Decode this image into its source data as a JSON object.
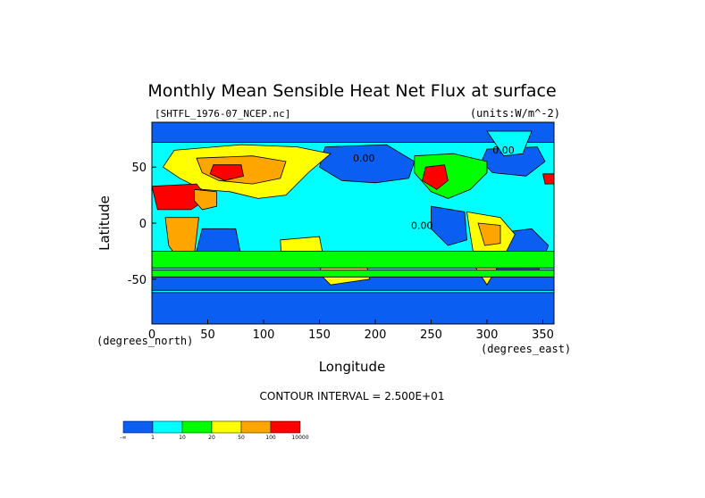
{
  "chart_data": {
    "type": "heatmap",
    "title": "Monthly Mean Sensible Heat Net Flux at surface",
    "source_file": "[SHTFL_1976-07_NCEP.nc]",
    "units": "(units:W/m^-2)",
    "xlabel": "Longitude",
    "ylabel": "Latitude",
    "x_unit_note": "(degrees_east)",
    "y_unit_note": "(degrees_north)",
    "xlim": [
      0,
      360
    ],
    "ylim": [
      -90,
      90
    ],
    "x_ticks": [
      "0",
      "50",
      "100",
      "150",
      "200",
      "250",
      "300",
      "350"
    ],
    "y_ticks": [
      "50",
      "0",
      "-50"
    ],
    "contour_interval": "CONTOUR INTERVAL = 2.500E+01",
    "contour_labels": [
      "0.00",
      "0.00",
      "0.00"
    ],
    "colorbar": {
      "labels": [
        "-∞",
        "1",
        "10",
        "20",
        "50",
        "100",
        "10000"
      ],
      "colors": [
        "#0a5ff2",
        "#00ffff",
        "#00ff00",
        "#ffff00",
        "#ffa500",
        "#ff0000"
      ]
    },
    "regions": [
      {
        "name": "arctic-ocean",
        "level": 0,
        "points": [
          [
            0,
            90
          ],
          [
            360,
            90
          ],
          [
            360,
            72
          ],
          [
            0,
            72
          ]
        ]
      },
      {
        "name": "southern-ocean-band",
        "level": 0,
        "points": [
          [
            0,
            -60
          ],
          [
            360,
            -60
          ],
          [
            360,
            -45
          ],
          [
            0,
            -45
          ]
        ]
      },
      {
        "name": "antarctica-coast",
        "level": 0,
        "points": [
          [
            0,
            -90
          ],
          [
            360,
            -90
          ],
          [
            360,
            -62
          ],
          [
            0,
            -62
          ]
        ]
      },
      {
        "name": "north-pacific-cool",
        "level": 0,
        "points": [
          [
            155,
            68
          ],
          [
            210,
            70
          ],
          [
            235,
            55
          ],
          [
            230,
            40
          ],
          [
            200,
            36
          ],
          [
            170,
            38
          ],
          [
            150,
            50
          ]
        ]
      },
      {
        "name": "north-atlantic-cool",
        "level": 0,
        "points": [
          [
            300,
            66
          ],
          [
            345,
            68
          ],
          [
            352,
            55
          ],
          [
            335,
            42
          ],
          [
            305,
            45
          ],
          [
            295,
            55
          ]
        ]
      },
      {
        "name": "east-pacific-cool",
        "level": 0,
        "points": [
          [
            250,
            15
          ],
          [
            280,
            10
          ],
          [
            282,
            -15
          ],
          [
            265,
            -20
          ],
          [
            250,
            -5
          ]
        ]
      },
      {
        "name": "south-atlantic-cool",
        "level": 0,
        "points": [
          [
            300,
            -10
          ],
          [
            340,
            -5
          ],
          [
            355,
            -20
          ],
          [
            345,
            -45
          ],
          [
            305,
            -45
          ]
        ]
      },
      {
        "name": "indian-ocean-west",
        "level": 0,
        "points": [
          [
            45,
            -5
          ],
          [
            75,
            -5
          ],
          [
            80,
            -30
          ],
          [
            55,
            -40
          ],
          [
            40,
            -25
          ]
        ]
      },
      {
        "name": "north-america",
        "level": 2,
        "points": [
          [
            235,
            60
          ],
          [
            270,
            62
          ],
          [
            300,
            55
          ],
          [
            300,
            45
          ],
          [
            285,
            30
          ],
          [
            265,
            22
          ],
          [
            250,
            28
          ],
          [
            235,
            45
          ]
        ]
      },
      {
        "name": "north-america-hot",
        "level": 5,
        "points": [
          [
            245,
            50
          ],
          [
            262,
            52
          ],
          [
            265,
            38
          ],
          [
            255,
            30
          ],
          [
            242,
            38
          ]
        ]
      },
      {
        "name": "eurasia-warm",
        "level": 3,
        "points": [
          [
            20,
            65
          ],
          [
            80,
            70
          ],
          [
            130,
            68
          ],
          [
            160,
            62
          ],
          [
            140,
            45
          ],
          [
            120,
            25
          ],
          [
            95,
            22
          ],
          [
            70,
            28
          ],
          [
            45,
            30
          ],
          [
            25,
            40
          ],
          [
            10,
            50
          ]
        ]
      },
      {
        "name": "eurasia-hot",
        "level": 4,
        "points": [
          [
            40,
            58
          ],
          [
            90,
            60
          ],
          [
            120,
            55
          ],
          [
            115,
            40
          ],
          [
            90,
            35
          ],
          [
            60,
            38
          ],
          [
            45,
            45
          ]
        ]
      },
      {
        "name": "central-asia-red",
        "level": 5,
        "points": [
          [
            55,
            52
          ],
          [
            80,
            52
          ],
          [
            82,
            42
          ],
          [
            65,
            38
          ],
          [
            52,
            44
          ]
        ]
      },
      {
        "name": "sahara-red",
        "level": 5,
        "points": [
          [
            0,
            33
          ],
          [
            40,
            35
          ],
          [
            50,
            22
          ],
          [
            35,
            12
          ],
          [
            5,
            12
          ]
        ]
      },
      {
        "name": "iberia-red",
        "level": 5,
        "points": [
          [
            350,
            44
          ],
          [
            360,
            44
          ],
          [
            360,
            35
          ],
          [
            352,
            35
          ]
        ]
      },
      {
        "name": "arabia",
        "level": 4,
        "points": [
          [
            38,
            30
          ],
          [
            58,
            28
          ],
          [
            58,
            15
          ],
          [
            45,
            12
          ],
          [
            38,
            20
          ]
        ]
      },
      {
        "name": "southern-africa",
        "level": 4,
        "points": [
          [
            12,
            5
          ],
          [
            42,
            5
          ],
          [
            38,
            -28
          ],
          [
            25,
            -34
          ],
          [
            15,
            -20
          ]
        ]
      },
      {
        "name": "australia",
        "level": 3,
        "points": [
          [
            115,
            -15
          ],
          [
            150,
            -12
          ],
          [
            153,
            -28
          ],
          [
            138,
            -38
          ],
          [
            116,
            -33
          ]
        ]
      },
      {
        "name": "south-pacific-yellow",
        "level": 3,
        "points": [
          [
            155,
            -25
          ],
          [
            190,
            -28
          ],
          [
            195,
            -50
          ],
          [
            160,
            -55
          ],
          [
            150,
            -45
          ]
        ]
      },
      {
        "name": "south-america",
        "level": 3,
        "points": [
          [
            282,
            10
          ],
          [
            312,
            5
          ],
          [
            325,
            -10
          ],
          [
            315,
            -30
          ],
          [
            300,
            -55
          ],
          [
            290,
            -40
          ],
          [
            285,
            -10
          ]
        ]
      },
      {
        "name": "amazon-orange",
        "level": 4,
        "points": [
          [
            292,
            0
          ],
          [
            312,
            -2
          ],
          [
            312,
            -18
          ],
          [
            298,
            -20
          ]
        ]
      },
      {
        "name": "greenland",
        "level": 1,
        "points": [
          [
            300,
            82
          ],
          [
            340,
            82
          ],
          [
            332,
            62
          ],
          [
            315,
            60
          ]
        ]
      },
      {
        "name": "tropical-belt-green",
        "level": 2,
        "points": [
          [
            0,
            -25
          ],
          [
            360,
            -25
          ],
          [
            360,
            -40
          ],
          [
            0,
            -40
          ]
        ]
      },
      {
        "name": "southern-green-band",
        "level": 2,
        "points": [
          [
            0,
            -42
          ],
          [
            360,
            -42
          ],
          [
            360,
            -48
          ],
          [
            0,
            -48
          ]
        ]
      }
    ]
  }
}
